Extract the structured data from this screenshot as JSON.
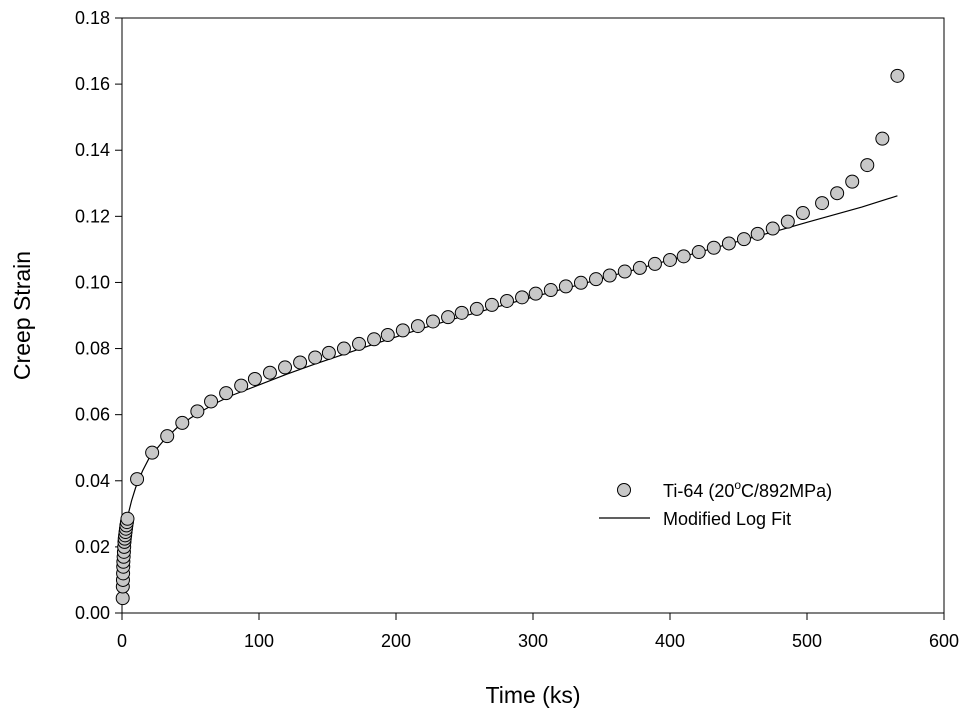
{
  "chart_data": {
    "type": "scatter",
    "title": "",
    "xlabel": "Time (ks)",
    "ylabel": "Creep Strain",
    "xlim": [
      0,
      600
    ],
    "ylim": [
      0,
      0.18
    ],
    "x_ticks": [
      0,
      100,
      200,
      300,
      400,
      500,
      600
    ],
    "x_tick_labels": [
      "0",
      "100",
      "200",
      "300",
      "400",
      "500",
      "600"
    ],
    "y_ticks": [
      0,
      0.02,
      0.04,
      0.06,
      0.08,
      0.1,
      0.12,
      0.14,
      0.16,
      0.18
    ],
    "y_tick_labels": [
      "0.00",
      "0.02",
      "0.04",
      "0.06",
      "0.08",
      "0.10",
      "0.12",
      "0.14",
      "0.16",
      "0.18"
    ],
    "grid": false,
    "legend_position": "lower-right",
    "series": [
      {
        "name": "Ti-64 (20°C/892MPa)",
        "legend_label": {
          "main": "Ti-64 (20",
          "sup": "o",
          "rest": "C/892MPa)"
        },
        "kind": "scatter",
        "marker": "circle",
        "marker_fill": "#c8c8c8",
        "marker_stroke": "#000000",
        "points": [
          [
            0.5,
            0.0045
          ],
          [
            0.6,
            0.008
          ],
          [
            0.7,
            0.01
          ],
          [
            0.8,
            0.012
          ],
          [
            0.9,
            0.014
          ],
          [
            1.0,
            0.0155
          ],
          [
            1.2,
            0.017
          ],
          [
            1.4,
            0.0185
          ],
          [
            1.6,
            0.02
          ],
          [
            1.8,
            0.0215
          ],
          [
            2.0,
            0.0225
          ],
          [
            2.3,
            0.0235
          ],
          [
            2.6,
            0.0245
          ],
          [
            2.9,
            0.0255
          ],
          [
            3.2,
            0.0265
          ],
          [
            3.6,
            0.0275
          ],
          [
            4.0,
            0.0285
          ],
          [
            11,
            0.0405
          ],
          [
            22,
            0.0485
          ],
          [
            33,
            0.0535
          ],
          [
            44,
            0.0575
          ],
          [
            55,
            0.061
          ],
          [
            65,
            0.064
          ],
          [
            76,
            0.0665
          ],
          [
            87,
            0.0688
          ],
          [
            97,
            0.0708
          ],
          [
            108,
            0.0727
          ],
          [
            119,
            0.0743
          ],
          [
            130,
            0.0758
          ],
          [
            141,
            0.0773
          ],
          [
            151,
            0.0787
          ],
          [
            162,
            0.08
          ],
          [
            173,
            0.0814
          ],
          [
            184,
            0.0828
          ],
          [
            194,
            0.0841
          ],
          [
            205,
            0.0855
          ],
          [
            216,
            0.0868
          ],
          [
            227,
            0.0882
          ],
          [
            238,
            0.0895
          ],
          [
            248,
            0.0908
          ],
          [
            259,
            0.092
          ],
          [
            270,
            0.0932
          ],
          [
            281,
            0.0944
          ],
          [
            292,
            0.0955
          ],
          [
            302,
            0.0966
          ],
          [
            313,
            0.0977
          ],
          [
            324,
            0.0988
          ],
          [
            335,
            0.0999
          ],
          [
            346,
            0.101
          ],
          [
            356,
            0.1021
          ],
          [
            367,
            0.1033
          ],
          [
            378,
            0.1044
          ],
          [
            389,
            0.1056
          ],
          [
            400,
            0.1068
          ],
          [
            410,
            0.1079
          ],
          [
            421,
            0.1092
          ],
          [
            432,
            0.1105
          ],
          [
            443,
            0.1118
          ],
          [
            454,
            0.1131
          ],
          [
            464,
            0.1147
          ],
          [
            475,
            0.1163
          ],
          [
            486,
            0.1184
          ],
          [
            497,
            0.121
          ],
          [
            511,
            0.124
          ],
          [
            522,
            0.127
          ],
          [
            533,
            0.1305
          ],
          [
            544,
            0.1355
          ],
          [
            555,
            0.1435
          ],
          [
            566,
            0.1625
          ]
        ]
      },
      {
        "name": "Modified Log Fit",
        "kind": "line",
        "stroke": "#000000",
        "points": [
          [
            0.3,
            0.02
          ],
          [
            1,
            0.023
          ],
          [
            2,
            0.025
          ],
          [
            4,
            0.029
          ],
          [
            7,
            0.034
          ],
          [
            10,
            0.038
          ],
          [
            15,
            0.043
          ],
          [
            20,
            0.047
          ],
          [
            30,
            0.052
          ],
          [
            40,
            0.056
          ],
          [
            50,
            0.059
          ],
          [
            60,
            0.0615
          ],
          [
            70,
            0.0638
          ],
          [
            80,
            0.0658
          ],
          [
            100,
            0.069
          ],
          [
            120,
            0.0722
          ],
          [
            140,
            0.0752
          ],
          [
            160,
            0.078
          ],
          [
            180,
            0.0808
          ],
          [
            200,
            0.0835
          ],
          [
            220,
            0.0862
          ],
          [
            240,
            0.0887
          ],
          [
            260,
            0.091
          ],
          [
            280,
            0.0933
          ],
          [
            300,
            0.0956
          ],
          [
            320,
            0.0978
          ],
          [
            340,
            0.1
          ],
          [
            360,
            0.1023
          ],
          [
            380,
            0.1045
          ],
          [
            400,
            0.1068
          ],
          [
            420,
            0.109
          ],
          [
            440,
            0.1113
          ],
          [
            460,
            0.1136
          ],
          [
            480,
            0.1158
          ],
          [
            500,
            0.1182
          ],
          [
            520,
            0.1205
          ],
          [
            540,
            0.1228
          ],
          [
            566,
            0.1262
          ]
        ]
      }
    ]
  }
}
